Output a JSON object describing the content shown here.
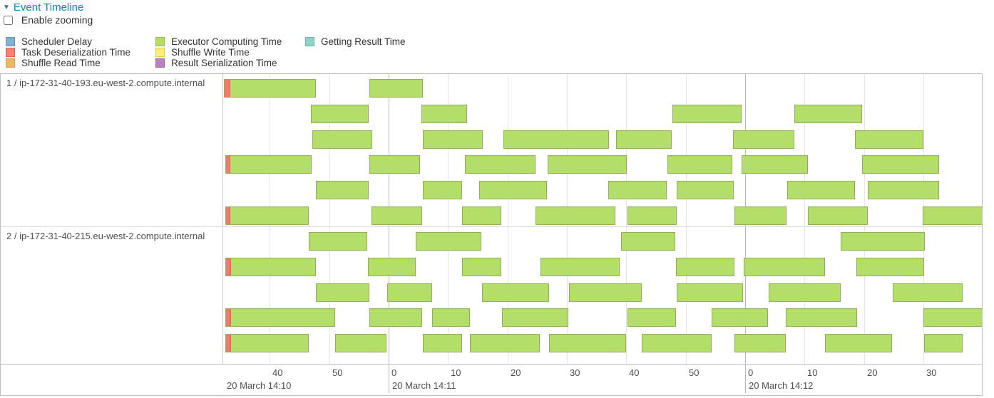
{
  "header": {
    "title": "Event Timeline",
    "collapse_icon": "▼"
  },
  "controls": {
    "enable_zooming_label": "Enable zooming",
    "checked": false
  },
  "legend": {
    "columns": [
      [
        {
          "label": "Scheduler Delay",
          "color": "#80B1D3",
          "border": "#6591b8"
        },
        {
          "label": "Task Deserialization Time",
          "color": "#FB8072",
          "border": "#da6459"
        },
        {
          "label": "Shuffle Read Time",
          "color": "#FDB462",
          "border": "#dd9549"
        }
      ],
      [
        {
          "label": "Executor Computing Time",
          "color": "#B3DE69",
          "border": "#94bd4e"
        },
        {
          "label": "Shuffle Write Time",
          "color": "#FFED6F",
          "border": "#e0cb53"
        },
        {
          "label": "Result Serialization Time",
          "color": "#BC80BD",
          "border": "#a0659f"
        }
      ],
      [
        {
          "label": "Getting Result Time",
          "color": "#8DD3C7",
          "border": "#6db4a7"
        }
      ]
    ]
  },
  "timeline": {
    "time_reference": "seconds relative to 20 March 14:11:00",
    "task_colors": {
      "executor_computing": "#b3de69",
      "bar_border": "#93ad5a",
      "task_deserialization": "#f4796d"
    },
    "axis": {
      "ticks": [
        {
          "s": -20,
          "label": "40"
        },
        {
          "s": -10,
          "label": "50"
        },
        {
          "s": 0,
          "label": "0",
          "major": true
        },
        {
          "s": 10,
          "label": "10"
        },
        {
          "s": 20,
          "label": "20"
        },
        {
          "s": 30,
          "label": "30"
        },
        {
          "s": 40,
          "label": "40"
        },
        {
          "s": 50,
          "label": "50"
        },
        {
          "s": 60,
          "label": "0",
          "major": true
        },
        {
          "s": 70,
          "label": "10"
        },
        {
          "s": 80,
          "label": "20"
        },
        {
          "s": 90,
          "label": "30"
        }
      ],
      "dates": [
        {
          "s": -27.8,
          "label": "20 March 14:10"
        },
        {
          "s": 0,
          "label": "20 March 14:11"
        },
        {
          "s": 60,
          "label": "20 March 14:12"
        }
      ]
    },
    "groups": [
      {
        "label": "1 / ip-172-31-40-193.eu-west-2.compute.internal",
        "rows": [
          [
            {
              "s": -27.7,
              "e": -12.2,
              "d": 0.9
            },
            {
              "s": -3.3,
              "e": 5.8
            }
          ],
          [
            {
              "s": -13.1,
              "e": -3.4
            },
            {
              "s": 5.5,
              "e": 13.2
            },
            {
              "s": 47.8,
              "e": 59.4
            },
            {
              "s": 68.3,
              "e": 79.7
            }
          ],
          [
            {
              "s": -12.8,
              "e": -2.7
            },
            {
              "s": 5.8,
              "e": 15.8
            },
            {
              "s": 19.3,
              "e": 37.1
            },
            {
              "s": 38.3,
              "e": 47.7
            },
            {
              "s": 58.0,
              "e": 68.3
            },
            {
              "s": 78.5,
              "e": 90.0
            }
          ],
          [
            {
              "s": -27.5,
              "e": -12.9,
              "d": 0.8
            },
            {
              "s": -3.2,
              "e": 5.3
            },
            {
              "s": 12.8,
              "e": 24.7
            },
            {
              "s": 26.7,
              "e": 40.1
            },
            {
              "s": 46.9,
              "e": 57.9
            },
            {
              "s": 59.4,
              "e": 70.5
            },
            {
              "s": 79.7,
              "e": 92.6
            }
          ],
          [
            {
              "s": -12.2,
              "e": -3.4
            },
            {
              "s": 5.7,
              "e": 12.3
            },
            {
              "s": 15.2,
              "e": 26.6
            },
            {
              "s": 37.0,
              "e": 46.8
            },
            {
              "s": 48.5,
              "e": 58.1
            },
            {
              "s": 67.1,
              "e": 78.5
            },
            {
              "s": 80.6,
              "e": 92.6
            }
          ],
          [
            {
              "s": -27.5,
              "e": -13.4,
              "d": 0.8
            },
            {
              "s": -2.9,
              "e": 5.7
            },
            {
              "s": 12.3,
              "e": 18.9
            },
            {
              "s": 24.7,
              "e": 38.2
            },
            {
              "s": 40.2,
              "e": 48.5
            },
            {
              "s": 58.2,
              "e": 67.0
            },
            {
              "s": 70.5,
              "e": 80.6
            },
            {
              "s": 89.9,
              "e": 100.2
            }
          ]
        ]
      },
      {
        "label": "2 / ip-172-31-40-215.eu-west-2.compute.internal",
        "rows": [
          [
            {
              "s": -13.4,
              "e": -3.6
            },
            {
              "s": 4.6,
              "e": 15.6
            },
            {
              "s": 39.1,
              "e": 48.3
            },
            {
              "s": 76.1,
              "e": 90.3
            }
          ],
          [
            {
              "s": -27.5,
              "e": -12.2,
              "d": 0.9
            },
            {
              "s": -3.5,
              "e": 4.6
            },
            {
              "s": 12.3,
              "e": 19.0
            },
            {
              "s": 25.5,
              "e": 38.9
            },
            {
              "s": 48.3,
              "e": 58.2
            },
            {
              "s": 59.7,
              "e": 73.4
            },
            {
              "s": 78.7,
              "e": 90.1
            }
          ],
          [
            {
              "s": -12.2,
              "e": -3.2
            },
            {
              "s": -0.3,
              "e": 7.3
            },
            {
              "s": 15.7,
              "e": 27.0
            },
            {
              "s": 30.4,
              "e": 42.6
            },
            {
              "s": 48.5,
              "e": 59.6
            },
            {
              "s": 63.9,
              "e": 76.1
            },
            {
              "s": 84.8,
              "e": 96.6
            }
          ],
          [
            {
              "s": -27.5,
              "e": -9.0,
              "d": 0.9
            },
            {
              "s": -3.2,
              "e": 5.7
            },
            {
              "s": 7.3,
              "e": 13.7
            },
            {
              "s": 19.1,
              "e": 30.3
            },
            {
              "s": 40.2,
              "e": 48.4
            },
            {
              "s": 54.3,
              "e": 63.8
            },
            {
              "s": 66.8,
              "e": 78.8
            },
            {
              "s": 90.0,
              "e": 100.2
            }
          ],
          [
            {
              "s": -27.5,
              "e": -13.4,
              "d": 0.9
            },
            {
              "s": -9.0,
              "e": -0.4
            },
            {
              "s": 5.7,
              "e": 12.3
            },
            {
              "s": 13.7,
              "e": 25.5
            },
            {
              "s": 27.0,
              "e": 40.0
            },
            {
              "s": 42.6,
              "e": 54.4
            },
            {
              "s": 58.2,
              "e": 66.8
            },
            {
              "s": 73.4,
              "e": 84.7
            },
            {
              "s": 90.1,
              "e": 96.6
            }
          ]
        ]
      }
    ]
  }
}
